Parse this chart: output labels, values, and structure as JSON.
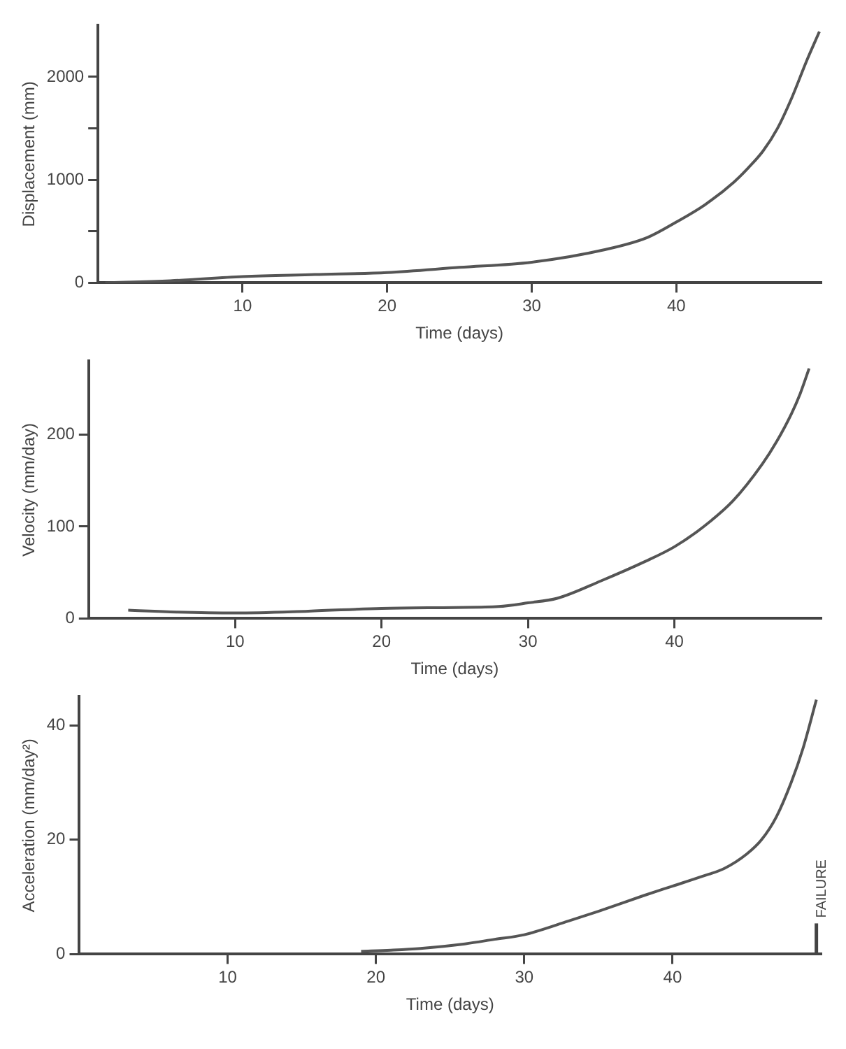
{
  "chart_data": [
    {
      "type": "line",
      "xlabel": "Time (days)",
      "ylabel": "Displacement (mm)",
      "xlim": [
        0,
        50
      ],
      "xticks": [
        10,
        20,
        30,
        40
      ],
      "ylim": [
        0,
        2500
      ],
      "yticks": [
        0,
        {
          "value": 500,
          "label": null
        },
        1000,
        {
          "value": 1500,
          "label": null
        },
        2000
      ],
      "series": [
        {
          "color": "#555555",
          "x": [
            0.5,
            5,
            10,
            15,
            20,
            25,
            30,
            35,
            38,
            40,
            42,
            44,
            45,
            46,
            47,
            48,
            49,
            49.9
          ],
          "values": [
            0,
            20,
            60,
            80,
            100,
            150,
            200,
            320,
            440,
            590,
            760,
            980,
            1120,
            1280,
            1500,
            1800,
            2150,
            2440
          ]
        }
      ]
    },
    {
      "type": "line",
      "xlabel": "Time (days)",
      "ylabel": "Velocity (mm/day)",
      "xlim": [
        0,
        50
      ],
      "xticks": [
        10,
        20,
        30,
        40
      ],
      "ylim": [
        0,
        280
      ],
      "yticks": [
        0,
        100,
        200
      ],
      "series": [
        {
          "color": "#555555",
          "x": [
            2.7,
            6,
            10,
            15,
            20,
            25,
            28,
            30,
            32,
            35,
            38,
            40,
            42,
            44,
            46,
            47,
            48,
            48.6,
            49.2
          ],
          "values": [
            9,
            7,
            6,
            8,
            11,
            12,
            13,
            17,
            22,
            41,
            62,
            78,
            100,
            128,
            168,
            193,
            223,
            245,
            272
          ]
        }
      ]
    },
    {
      "type": "line",
      "xlabel": "Time (days)",
      "ylabel": "Acceleration (mm/day²)",
      "xlim": [
        0,
        50
      ],
      "xticks": [
        10,
        20,
        30,
        40
      ],
      "ylim": [
        0,
        45
      ],
      "yticks": [
        0,
        20,
        40
      ],
      "ref_lines": [
        {
          "axis": "x",
          "value": 49.7,
          "label": "FAILURE"
        }
      ],
      "series": [
        {
          "color": "#555555",
          "x": [
            19,
            21,
            23,
            26,
            28,
            30,
            33,
            35,
            38,
            40,
            42,
            43.5,
            45,
            46,
            47,
            48,
            48.8,
            49.7
          ],
          "values": [
            0.5,
            0.7,
            1,
            1.8,
            2.6,
            3.4,
            5.8,
            7.5,
            10.2,
            11.9,
            13.6,
            15,
            17.5,
            20,
            24,
            30,
            36,
            44.5
          ]
        }
      ]
    }
  ]
}
